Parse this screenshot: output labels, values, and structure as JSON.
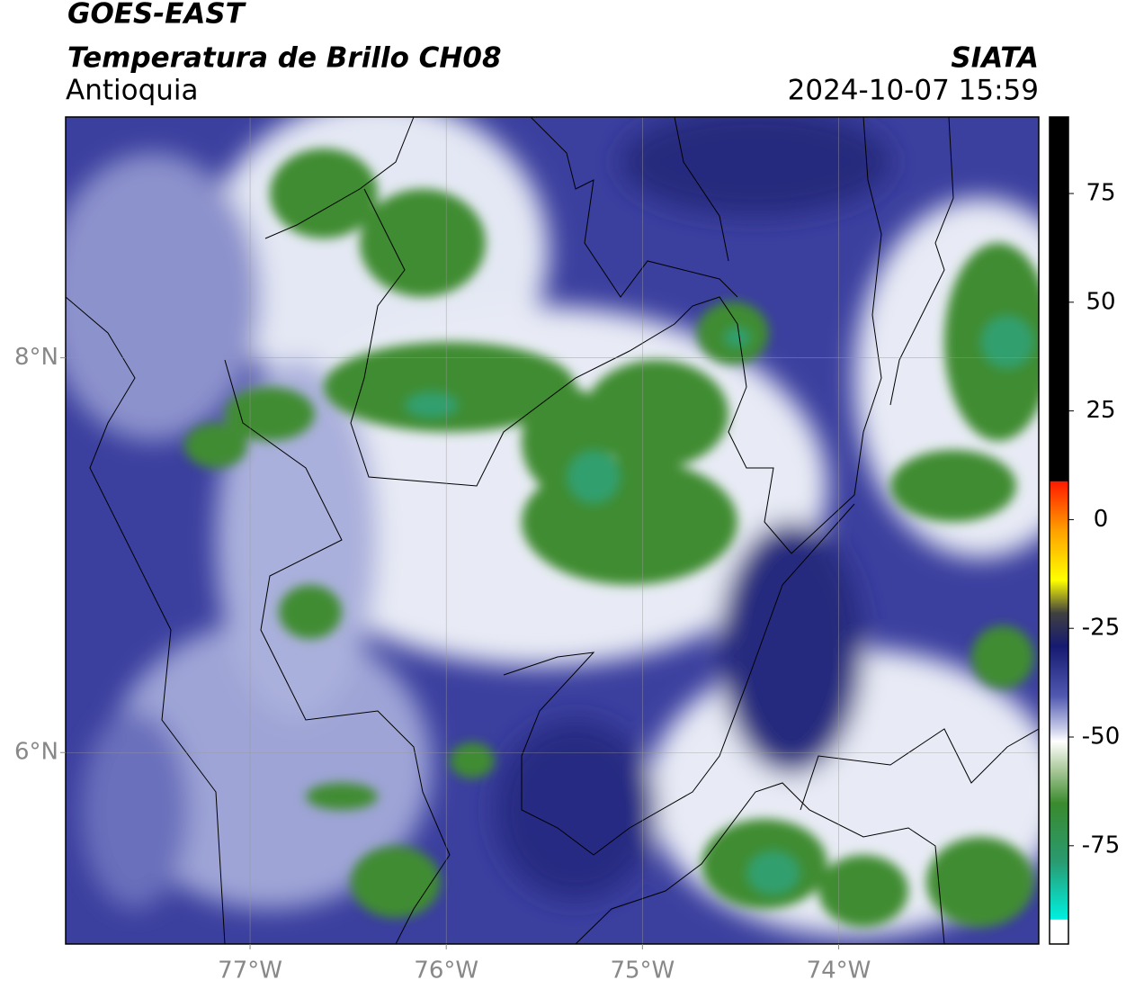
{
  "header": {
    "title": "GOES-EAST",
    "subtitle": "Temperatura de Brillo CH08",
    "region": "Antioquia",
    "source": "SIATA",
    "datetime": "2024-10-07 15:59"
  },
  "map": {
    "xlim": [
      -77.94,
      -72.98
    ],
    "ylim": [
      5.03,
      9.22
    ],
    "lat_ticks": [
      {
        "value": 8,
        "label": "8°N"
      },
      {
        "value": 6,
        "label": "6°N"
      }
    ],
    "lon_ticks": [
      {
        "value": -77,
        "label": "77°W"
      },
      {
        "value": -76,
        "label": "76°W"
      },
      {
        "value": -75,
        "label": "75°W"
      },
      {
        "value": -74,
        "label": "74°W"
      }
    ]
  },
  "colorbar": {
    "lim": [
      -97.6,
      92.6
    ],
    "ticks": [
      75,
      50,
      25,
      0,
      -25,
      -50,
      -75
    ]
  }
}
